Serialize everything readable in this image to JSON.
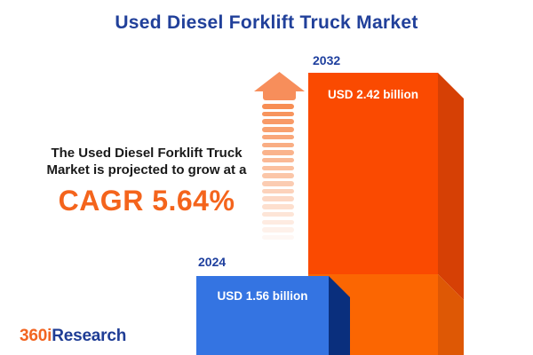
{
  "title": "Used Diesel Forklift Truck Market",
  "description": {
    "line1": "The Used Diesel Forklift Truck",
    "line2": "Market is projected to grow at a",
    "cagr": "CAGR 5.64%"
  },
  "chart_data": {
    "type": "bar",
    "categories": [
      "2024",
      "2032"
    ],
    "values": [
      1.56,
      2.42
    ],
    "unit": "USD billion",
    "data_labels": [
      "USD 1.56 billion",
      "USD 2.42 billion"
    ],
    "title": "Used Diesel Forklift Truck Market",
    "annotations": [
      "CAGR 5.64%"
    ],
    "bar_colors": [
      "#3474E2",
      "#FA4A01"
    ],
    "legend": false,
    "grid": false,
    "style": "3d-infographic, bars cropped at bottom edge, growth arrow between description and bars"
  },
  "bars": {
    "b2024": {
      "year": "2024",
      "value_label": "USD 1.56 billion"
    },
    "b2032": {
      "year": "2032",
      "value_label": "USD 2.42 billion"
    }
  },
  "logo": {
    "part1": "360i",
    "part2": "Research"
  },
  "colors": {
    "title_blue": "#21409A",
    "year_label_blue": "#1E3F9E",
    "cagr_orange": "#F4641C",
    "text_black": "#1A1A1A",
    "bar2024_front": "#3474E2",
    "bar2024_side": "#0A2F7D",
    "bar2032_front_top": "#FA4A01",
    "bar2032_front_bottom": "#FB6602",
    "bar2032_side_top": "#D64005",
    "bar2032_side_bottom": "#DE5805",
    "arrow_orange": "#F78E5B",
    "logo_orange": "#F26522",
    "logo_blue": "#1F3D95",
    "background": "#FFFFFF"
  },
  "arrow": {
    "stripe_count": 18,
    "stripe_pitch": 8.7
  }
}
